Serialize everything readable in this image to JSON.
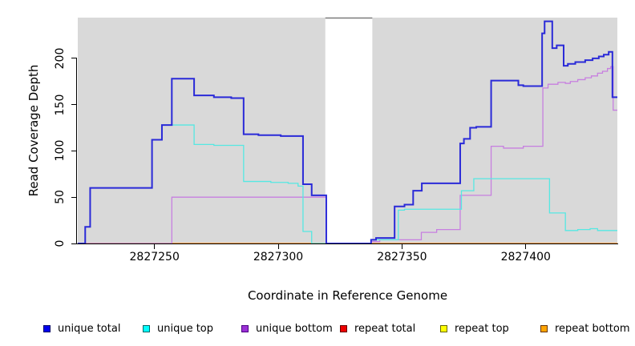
{
  "chart_data": {
    "type": "line",
    "subtype": "step",
    "title": "",
    "xlabel": "Coordinate in Reference Genome",
    "ylabel": "Read Coverage Depth",
    "x_range": [
      2827219,
      2827437
    ],
    "y_range": [
      0,
      244
    ],
    "grid": false,
    "legend_position": "bottom",
    "plot_background": "#D9D9D9",
    "axis_color": "#000000",
    "x_ticks": [
      {
        "value": 2827250,
        "label": "2827250"
      },
      {
        "value": 2827300,
        "label": "2827300"
      },
      {
        "value": 2827350,
        "label": "2827350"
      },
      {
        "value": 2827400,
        "label": "2827400"
      }
    ],
    "y_ticks": [
      {
        "value": 0,
        "label": "0"
      },
      {
        "value": 50,
        "label": "50"
      },
      {
        "value": 100,
        "label": "100"
      },
      {
        "value": 150,
        "label": "150"
      },
      {
        "value": 200,
        "label": "200"
      }
    ],
    "gap_band": {
      "x_start": 2827319,
      "x_end": 2827338,
      "color": "#FFFFFF",
      "top_edge_color": "#7A7A7A"
    },
    "series": [
      {
        "name": "repeat total",
        "color": "#DD0000",
        "line_width": 1,
        "points": [
          [
            2827219,
            0
          ],
          [
            2827437,
            0
          ]
        ]
      },
      {
        "name": "repeat top",
        "color": "#F5F500",
        "line_width": 1,
        "points": [
          [
            2827219,
            0
          ],
          [
            2827437,
            0
          ]
        ]
      },
      {
        "name": "repeat bottom",
        "color": "#FF8C1A",
        "line_width": 1.6,
        "points": [
          [
            2827219,
            0
          ],
          [
            2827437,
            0
          ]
        ]
      },
      {
        "name": "unique bottom",
        "color": "#C77FE0",
        "line_width": 1.3,
        "points": [
          [
            2827219,
            0
          ],
          [
            2827257,
            50
          ],
          [
            2827319.4,
            0
          ],
          [
            2827337.5,
            2
          ],
          [
            2827341,
            4
          ],
          [
            2827357.8,
            12
          ],
          [
            2827364,
            15
          ],
          [
            2827373.5,
            52
          ],
          [
            2827386,
            105
          ],
          [
            2827391,
            103
          ],
          [
            2827399,
            105
          ],
          [
            2827406.9,
            168
          ],
          [
            2827409,
            172
          ],
          [
            2827413,
            174
          ],
          [
            2827416,
            173
          ],
          [
            2827418,
            175
          ],
          [
            2827421,
            177
          ],
          [
            2827424,
            179
          ],
          [
            2827426.5,
            181
          ],
          [
            2827429,
            184
          ],
          [
            2827431,
            186
          ],
          [
            2827433,
            189
          ],
          [
            2827434.3,
            191
          ],
          [
            2827435.3,
            144
          ],
          [
            2827437,
            144
          ]
        ]
      },
      {
        "name": "unique top",
        "color": "#55E8E2",
        "line_width": 1.3,
        "points": [
          [
            2827219,
            0
          ],
          [
            2827222,
            18
          ],
          [
            2827224,
            60
          ],
          [
            2827249,
            112
          ],
          [
            2827253,
            128
          ],
          [
            2827266,
            107
          ],
          [
            2827274,
            106
          ],
          [
            2827286,
            67
          ],
          [
            2827297,
            66
          ],
          [
            2827304,
            65
          ],
          [
            2827308,
            62
          ],
          [
            2827310,
            13
          ],
          [
            2827313.5,
            0
          ],
          [
            2827337.5,
            4
          ],
          [
            2827348.5,
            36
          ],
          [
            2827351,
            37
          ],
          [
            2827374,
            57
          ],
          [
            2827379,
            70
          ],
          [
            2827409.6,
            33
          ],
          [
            2827416,
            14
          ],
          [
            2827421,
            15
          ],
          [
            2827426,
            16
          ],
          [
            2827429,
            14
          ],
          [
            2827437,
            14
          ]
        ]
      },
      {
        "name": "unique total",
        "color": "#2A2AD8",
        "line_width": 2,
        "points": [
          [
            2827219,
            0
          ],
          [
            2827222,
            18
          ],
          [
            2827224,
            60
          ],
          [
            2827249,
            112
          ],
          [
            2827253,
            128
          ],
          [
            2827257,
            178
          ],
          [
            2827266,
            160
          ],
          [
            2827274,
            158
          ],
          [
            2827281,
            157
          ],
          [
            2827286,
            118
          ],
          [
            2827292,
            117
          ],
          [
            2827301,
            116
          ],
          [
            2827310,
            64
          ],
          [
            2827313.5,
            52
          ],
          [
            2827319.4,
            0
          ],
          [
            2827337.5,
            4
          ],
          [
            2827339.5,
            6
          ],
          [
            2827347,
            40
          ],
          [
            2827351,
            42
          ],
          [
            2827354.5,
            57
          ],
          [
            2827358,
            65
          ],
          [
            2827373.5,
            108
          ],
          [
            2827375,
            113
          ],
          [
            2827377.5,
            125
          ],
          [
            2827380,
            126
          ],
          [
            2827386,
            176
          ],
          [
            2827397,
            171
          ],
          [
            2827399,
            170
          ],
          [
            2827406.6,
            227
          ],
          [
            2827407.6,
            240
          ],
          [
            2827410.7,
            211
          ],
          [
            2827412.5,
            214
          ],
          [
            2827415.3,
            192
          ],
          [
            2827417,
            194
          ],
          [
            2827420,
            196
          ],
          [
            2827424,
            198
          ],
          [
            2827427,
            200
          ],
          [
            2827429.5,
            202
          ],
          [
            2827431.5,
            204
          ],
          [
            2827433.5,
            207
          ],
          [
            2827435,
            158
          ],
          [
            2827437,
            158
          ]
        ]
      }
    ],
    "legend_items": [
      {
        "label": "unique total",
        "fill": "#0000EE",
        "border": "#000066"
      },
      {
        "label": "unique top",
        "fill": "#00FFFF",
        "border": "#006666"
      },
      {
        "label": "unique bottom",
        "fill": "#9B30D5",
        "border": "#4B0082"
      },
      {
        "label": "repeat total",
        "fill": "#EE0000",
        "border": "#660000"
      },
      {
        "label": "repeat top",
        "fill": "#FFFF00",
        "border": "#666600"
      },
      {
        "label": "repeat bottom",
        "fill": "#FFA500",
        "border": "#663300"
      }
    ]
  }
}
